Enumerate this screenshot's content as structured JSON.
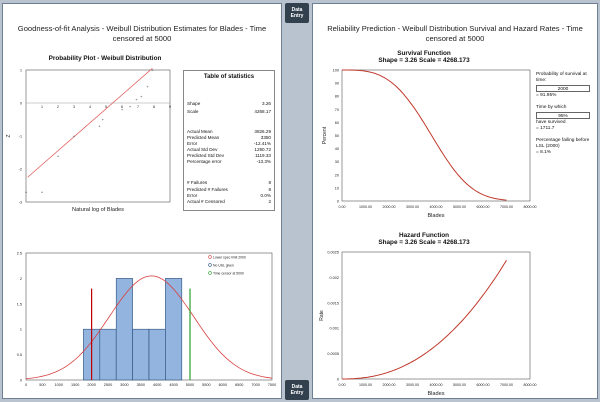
{
  "left_panel": {
    "title_line1": "Goodness-of-fit Analysis - Weibull Distribution Estimates for Blades - Time",
    "title_line2": "censored at 5000"
  },
  "right_panel": {
    "title_line1": "Reliability Prediction - Weibull Distribution Survival and Hazard Rates - Time",
    "title_line2": "censored at 5000"
  },
  "buttons": {
    "data_entry": "Data Entry"
  },
  "prob_plot": {
    "title": "Probability Plot - Weibull Distribution",
    "xlabel": "Natural log of Blades",
    "ylabel": "Z",
    "xticks": [
      "1",
      "2",
      "3",
      "4",
      "5",
      "6",
      "7",
      "8",
      "9"
    ],
    "yticks": [
      "1",
      "0",
      "-1",
      "-2",
      "-3"
    ]
  },
  "stats": {
    "title": "Table of statistics",
    "rows": [
      {
        "label": "Shape",
        "value": "3.26"
      },
      {
        "label": "Scale",
        "value": "4268.17"
      },
      {
        "label": "Actual Mean",
        "value": "3826.29"
      },
      {
        "label": "Predicted Mean",
        "value": "3350"
      },
      {
        "label": "Error",
        "value": "-12.41%"
      },
      {
        "label": "Actual Std Dev",
        "value": "1290.72"
      },
      {
        "label": "Predicted Std Dev",
        "value": "1119.33"
      },
      {
        "label": "Percentage error",
        "value": "-13.3%"
      },
      {
        "label": "# Failures",
        "value": "8"
      },
      {
        "label": "Predicted # Failures",
        "value": "8"
      },
      {
        "label": "Error",
        "value": "0.0%"
      },
      {
        "label": "Actual # Censored",
        "value": "2"
      }
    ]
  },
  "survival": {
    "title": "Survival Function",
    "subtitle": "Shape = 3.26   Scale = 4268.173",
    "ylabel": "Percent",
    "xlabel": "Blades",
    "xticks": [
      "0.00",
      "1000.00",
      "2000.00",
      "3000.00",
      "4000.00",
      "5000.00",
      "6000.00",
      "7000.00",
      "8000.00"
    ],
    "yticks": [
      "100",
      "90",
      "80",
      "70",
      "60",
      "50",
      "40",
      "30",
      "20",
      "10",
      "0"
    ]
  },
  "hazard": {
    "title": "Hazard Function",
    "subtitle": "Shape = 3.26   Scale = 4268.173",
    "ylabel": "Rate",
    "xlabel": "Blades",
    "xticks": [
      "0.00",
      "1000.00",
      "2000.00",
      "3000.00",
      "4000.00",
      "5000.00",
      "6000.00",
      "7000.00",
      "8000.00"
    ],
    "yticks": [
      "0.0025",
      "0.002",
      "0.0015",
      "0.001",
      "0.0005",
      "0"
    ]
  },
  "histogram": {
    "legend": [
      "Lower spec limit 2000",
      "No USL given",
      "Time censor at 5000"
    ],
    "xticks": [
      "0",
      "500",
      "1000",
      "1500",
      "2000",
      "2500",
      "3000",
      "3500",
      "4000",
      "4500",
      "5000",
      "5500",
      "6000",
      "6500",
      "7000",
      "7500"
    ],
    "yticks": [
      "2.5",
      "2",
      "1.5",
      "1",
      "0.5",
      "0"
    ]
  },
  "prediction": {
    "survival_label": "Probability of survival at time:",
    "survival_input": "2000",
    "survival_result": "= 91.95%",
    "time_label": "Time by which",
    "time_input": "95%",
    "time_suffix": "have survived",
    "time_result": "= 1711.7",
    "fail_label": "Percentage failing before LSL (2000)",
    "fail_result": "= 8.1%"
  },
  "chart_data": [
    {
      "type": "scatter",
      "title": "Probability Plot - Weibull Distribution",
      "xlabel": "Natural log of Blades",
      "ylabel": "Z",
      "xlim": [
        0,
        9
      ],
      "ylim": [
        -3,
        1
      ],
      "x": [
        7.9,
        7.6,
        7.2,
        6.9,
        6.5,
        6.0,
        4.8,
        4.6,
        3.0,
        2.0,
        1.0,
        0.0
      ],
      "series": [
        {
          "name": "",
          "values": [
            1.0,
            0.5,
            0.2,
            0.1,
            -0.1,
            -0.2,
            -0.5,
            -0.7,
            -1.0,
            -1.6,
            -2.7,
            -2.7
          ]
        }
      ]
    },
    {
      "type": "line",
      "title": "Survival Function",
      "xlabel": "Blades",
      "ylabel": "Percent",
      "xlim": [
        0,
        8000
      ],
      "ylim": [
        0,
        100
      ],
      "shape": 3.26,
      "scale": 4268.173
    },
    {
      "type": "line",
      "title": "Hazard Function",
      "xlabel": "Blades",
      "ylabel": "Rate",
      "xlim": [
        0,
        8000
      ],
      "ylim": [
        0,
        0.0025
      ],
      "shape": 3.26,
      "scale": 4268.173
    },
    {
      "type": "bar",
      "xlim": [
        0,
        7500
      ],
      "ylim": [
        0,
        2.5
      ],
      "bin_edges": [
        1750,
        2250,
        2750,
        3250,
        3750,
        4250,
        4750
      ],
      "values": [
        1,
        1,
        2,
        1,
        1,
        2
      ],
      "lower_spec_limit": 2000,
      "time_censor": 5000,
      "mean": 3826.29,
      "sd": 1290.72,
      "legend_position": "top-right"
    }
  ]
}
